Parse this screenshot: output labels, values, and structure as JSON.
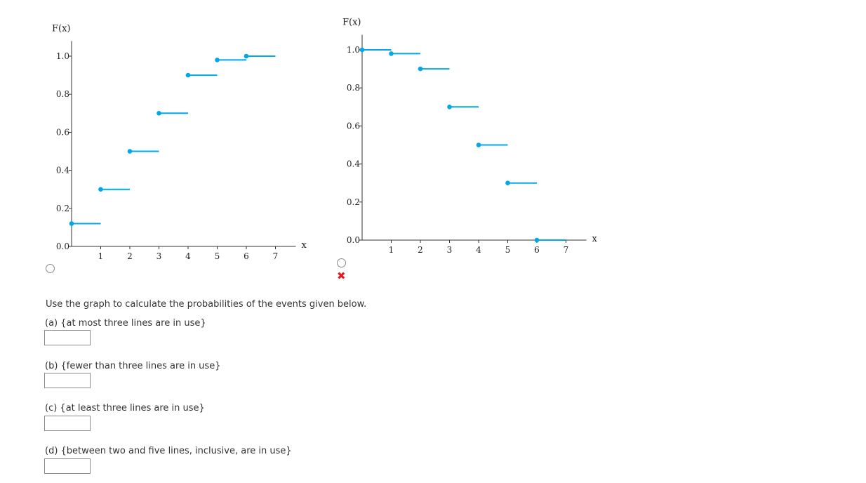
{
  "colors": {
    "series": "#00a8e8",
    "axis": "#333333",
    "wrong": "#e01b24"
  },
  "chart_data": [
    {
      "type": "line",
      "style": "step-function",
      "ylabel": "F(x)",
      "xlabel": "x",
      "xticks": [
        "1",
        "2",
        "3",
        "4",
        "5",
        "6",
        "7"
      ],
      "yticks": [
        "0.0",
        "0.2",
        "0.4",
        "0.6",
        "0.8",
        "1.0"
      ],
      "xlim": [
        0,
        7.7
      ],
      "ylim": [
        0,
        1.05
      ],
      "grid": false,
      "steps": [
        {
          "x0": 0,
          "x1": 1,
          "y": 0.12
        },
        {
          "x0": 1,
          "x1": 2,
          "y": 0.3
        },
        {
          "x0": 2,
          "x1": 3,
          "y": 0.5
        },
        {
          "x0": 3,
          "x1": 4,
          "y": 0.7
        },
        {
          "x0": 4,
          "x1": 5,
          "y": 0.9
        },
        {
          "x0": 5,
          "x1": 6,
          "y": 0.98
        },
        {
          "x0": 6,
          "x1": 7,
          "y": 1.0
        }
      ]
    },
    {
      "type": "line",
      "style": "step-function",
      "ylabel": "F(x)",
      "xlabel": "x",
      "xticks": [
        "1",
        "2",
        "3",
        "4",
        "5",
        "6",
        "7"
      ],
      "yticks": [
        "0.0",
        "0.2",
        "0.4",
        "0.6",
        "0.8",
        "1.0"
      ],
      "xlim": [
        0,
        7.7
      ],
      "ylim": [
        0,
        1.05
      ],
      "grid": false,
      "steps": [
        {
          "x0": 0,
          "x1": 1,
          "y": 1.0
        },
        {
          "x0": 1,
          "x1": 2,
          "y": 0.98
        },
        {
          "x0": 2,
          "x1": 3,
          "y": 0.9
        },
        {
          "x0": 3,
          "x1": 4,
          "y": 0.7
        },
        {
          "x0": 4,
          "x1": 5,
          "y": 0.5
        },
        {
          "x0": 5,
          "x1": 6,
          "y": 0.3
        },
        {
          "x0": 6,
          "x1": 7,
          "y": 0.0
        }
      ]
    }
  ],
  "options": [
    {
      "selected": false,
      "marked_wrong": false
    },
    {
      "selected": false,
      "marked_wrong": true
    }
  ],
  "problem": {
    "instructions": "Use the graph to calculate the probabilities of the events given below.",
    "parts": [
      {
        "label": "(a) {at most three lines are in use}",
        "value": ""
      },
      {
        "label": "(b) {fewer than three lines are in use}",
        "value": ""
      },
      {
        "label": "(c) {at least three lines are in use}",
        "value": ""
      },
      {
        "label": "(d) {between two and five lines, inclusive, are in use}",
        "value": ""
      }
    ]
  }
}
